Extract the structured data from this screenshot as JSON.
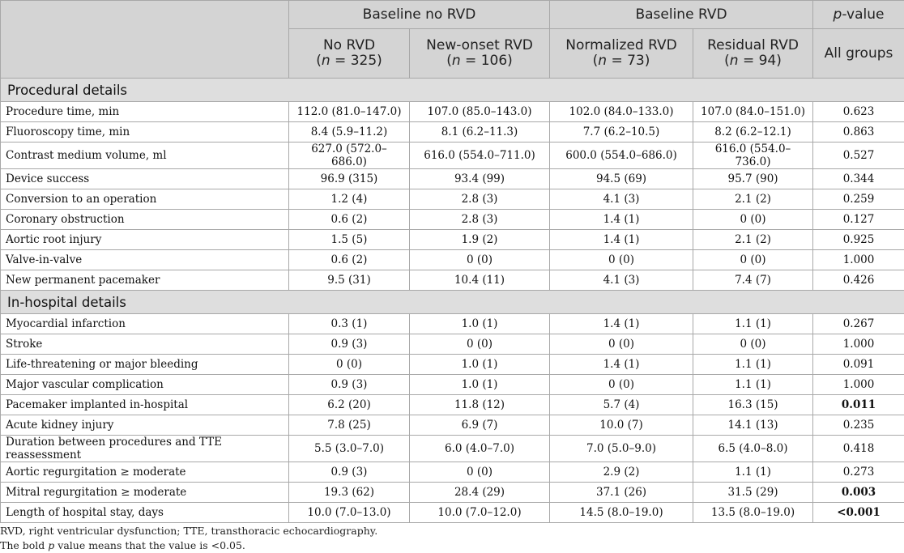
{
  "header": {
    "group1": "Baseline no RVD",
    "group2": "Baseline RVD",
    "pvalue_p": "p",
    "pvalue_rest": "-value",
    "cols": [
      {
        "name": "No RVD",
        "n_pre": "(",
        "n_italic": "n",
        "n_post": " = 325)"
      },
      {
        "name": "New-onset RVD",
        "n_pre": "(",
        "n_italic": "n",
        "n_post": " = 106)"
      },
      {
        "name": "Normalized RVD",
        "n_pre": "(",
        "n_italic": "n",
        "n_post": " = 73)"
      },
      {
        "name": "Residual RVD",
        "n_pre": "(",
        "n_italic": "n",
        "n_post": " = 94)"
      }
    ],
    "all_groups": "All groups"
  },
  "sections": [
    {
      "title": "Procedural details",
      "rows": [
        {
          "label": "Procedure time, min",
          "values": [
            "112.0 (81.0–147.0)",
            "107.0 (85.0–143.0)",
            "102.0 (84.0–133.0)",
            "107.0 (84.0–151.0)"
          ],
          "p": "0.623",
          "bold": false
        },
        {
          "label": "Fluoroscopy time, min",
          "values": [
            "8.4 (5.9–11.2)",
            "8.1 (6.2–11.3)",
            "7.7 (6.2–10.5)",
            "8.2 (6.2–12.1)"
          ],
          "p": "0.863",
          "bold": false
        },
        {
          "label": "Contrast medium volume, ml",
          "values": [
            "627.0 (572.0–686.0)",
            "616.0 (554.0–711.0)",
            "600.0 (554.0–686.0)",
            "616.0 (554.0–736.0)"
          ],
          "p": "0.527",
          "bold": false
        },
        {
          "label": "Device success",
          "values": [
            "96.9 (315)",
            "93.4 (99)",
            "94.5 (69)",
            "95.7 (90)"
          ],
          "p": "0.344",
          "bold": false
        },
        {
          "label": "Conversion to an operation",
          "values": [
            "1.2 (4)",
            "2.8 (3)",
            "4.1 (3)",
            "2.1 (2)"
          ],
          "p": "0.259",
          "bold": false
        },
        {
          "label": "Coronary obstruction",
          "values": [
            "0.6 (2)",
            "2.8 (3)",
            "1.4 (1)",
            "0 (0)"
          ],
          "p": "0.127",
          "bold": false
        },
        {
          "label": "Aortic root injury",
          "values": [
            "1.5 (5)",
            "1.9 (2)",
            "1.4 (1)",
            "2.1 (2)"
          ],
          "p": "0.925",
          "bold": false
        },
        {
          "label": "Valve-in-valve",
          "values": [
            "0.6 (2)",
            "0 (0)",
            "0 (0)",
            "0 (0)"
          ],
          "p": "1.000",
          "bold": false
        },
        {
          "label": "New permanent pacemaker",
          "values": [
            "9.5 (31)",
            "10.4 (11)",
            "4.1 (3)",
            "7.4 (7)"
          ],
          "p": "0.426",
          "bold": false
        }
      ]
    },
    {
      "title": "In-hospital details",
      "rows": [
        {
          "label": "Myocardial infarction",
          "values": [
            "0.3 (1)",
            "1.0 (1)",
            "1.4 (1)",
            "1.1 (1)"
          ],
          "p": "0.267",
          "bold": false
        },
        {
          "label": "Stroke",
          "values": [
            "0.9 (3)",
            "0 (0)",
            "0 (0)",
            "0 (0)"
          ],
          "p": "1.000",
          "bold": false
        },
        {
          "label": "Life-threatening or major bleeding",
          "values": [
            "0 (0)",
            "1.0 (1)",
            "1.4 (1)",
            "1.1 (1)"
          ],
          "p": "0.091",
          "bold": false
        },
        {
          "label": "Major vascular complication",
          "values": [
            "0.9 (3)",
            "1.0 (1)",
            "0 (0)",
            "1.1 (1)"
          ],
          "p": "1.000",
          "bold": false
        },
        {
          "label": "Pacemaker implanted in-hospital",
          "values": [
            "6.2 (20)",
            "11.8 (12)",
            "5.7 (4)",
            "16.3 (15)"
          ],
          "p": "0.011",
          "bold": true
        },
        {
          "label": "Acute kidney injury",
          "values": [
            "7.8 (25)",
            "6.9 (7)",
            "10.0 (7)",
            "14.1 (13)"
          ],
          "p": "0.235",
          "bold": false
        },
        {
          "label": "Duration between procedures and TTE reassessment",
          "values": [
            "5.5 (3.0–7.0)",
            "6.0 (4.0–7.0)",
            "7.0 (5.0–9.0)",
            "6.5 (4.0–8.0)"
          ],
          "p": "0.418",
          "bold": false
        },
        {
          "label": "Aortic regurgitation ≥ moderate",
          "values": [
            "0.9 (3)",
            "0 (0)",
            "2.9 (2)",
            "1.1 (1)"
          ],
          "p": "0.273",
          "bold": false
        },
        {
          "label": "Mitral regurgitation ≥ moderate",
          "values": [
            "19.3 (62)",
            "28.4 (29)",
            "37.1 (26)",
            "31.5 (29)"
          ],
          "p": "0.003",
          "bold": true
        },
        {
          "label": "Length of hospital stay, days",
          "values": [
            "10.0 (7.0–13.0)",
            "10.0 (7.0–12.0)",
            "14.5 (8.0–19.0)",
            "13.5 (8.0–19.0)"
          ],
          "p": "<0.001",
          "bold": true
        }
      ]
    }
  ],
  "footer": {
    "line1": "RVD, right ventricular dysfunction; TTE, transthoracic echocardiography.",
    "line2_pre": "The bold ",
    "line2_italic": "p",
    "line2_post": " value means that the value is <0.05."
  }
}
